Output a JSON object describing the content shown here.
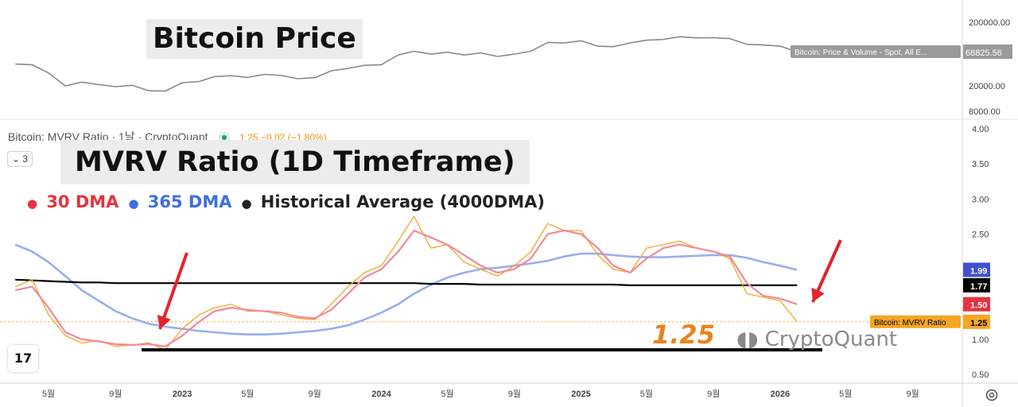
{
  "overlay": {
    "price_title": "Bitcoin Price",
    "mvrv_title": "MVRV Ratio (1D Timeframe)",
    "legend": [
      {
        "marker": "●",
        "label": "30 DMA",
        "color": "#e5333f"
      },
      {
        "marker": "●",
        "label": "365 DMA",
        "color": "#3f6fe0"
      },
      {
        "marker": "●",
        "label": "Historical Average (4000DMA)",
        "color": "#222222"
      }
    ],
    "value_label": "1.25",
    "watermark": "CryptoQuant"
  },
  "pane_header": {
    "series": "Bitcoin: MVRV Ratio · 1날 · CryptoQuant",
    "values": "1.25  −0.02 (−1.80%)",
    "collapse_label": "3"
  },
  "chart_data": [
    {
      "type": "line",
      "scale": "log",
      "y_ticks": [
        "200000.00",
        "20000.00",
        "8000.00"
      ],
      "last_value_labels": {
        "series": "Bitcoin: Price & Volume - Spot, All E...",
        "value": "68825.56"
      },
      "x": [
        "2022-03",
        "2022-04",
        "2022-05",
        "2022-06",
        "2022-07",
        "2022-08",
        "2022-09",
        "2022-10",
        "2022-11",
        "2022-12",
        "2023-01",
        "2023-02",
        "2023-03",
        "2023-04",
        "2023-05",
        "2023-06",
        "2023-07",
        "2023-08",
        "2023-09",
        "2023-10",
        "2023-11",
        "2023-12",
        "2024-01",
        "2024-02",
        "2024-03",
        "2024-04",
        "2024-05",
        "2024-06",
        "2024-07",
        "2024-08",
        "2024-09",
        "2024-10",
        "2024-11",
        "2024-12",
        "2025-01",
        "2025-02",
        "2025-03",
        "2025-04",
        "2025-05",
        "2025-06",
        "2025-07",
        "2025-08",
        "2025-09",
        "2025-10",
        "2025-11",
        "2025-12",
        "2026-01",
        "2026-02"
      ],
      "series": [
        {
          "color": "#8a8a8a",
          "values": [
            44000,
            43000,
            32000,
            20000,
            23000,
            21000,
            19500,
            20500,
            16800,
            16600,
            22500,
            23500,
            28000,
            29000,
            27200,
            30400,
            29200,
            26000,
            27000,
            34500,
            37700,
            42000,
            43000,
            61000,
            70000,
            63000,
            67500,
            61000,
            66000,
            58000,
            63000,
            70000,
            96000,
            94000,
            102000,
            84000,
            82500,
            94000,
            104000,
            107000,
            118000,
            113000,
            114000,
            110000,
            90000,
            87500,
            84000,
            68825
          ]
        }
      ]
    },
    {
      "type": "line",
      "ylim": [
        0.5,
        4.0
      ],
      "y_ticks": [
        "4.00",
        "3.50",
        "3.00",
        "2.50",
        "2.00",
        "1.50",
        "1.00",
        "0.50"
      ],
      "x_ticks": [
        "5월",
        "9월",
        "2023",
        "5월",
        "9월",
        "2024",
        "5월",
        "9월",
        "2025",
        "5월",
        "9월",
        "2026",
        "5월",
        "9월"
      ],
      "x_tick_dates": [
        "2022-05",
        "2022-09",
        "2023-01",
        "2023-05",
        "2023-09",
        "2024-01",
        "2024-05",
        "2024-09",
        "2025-01",
        "2025-05",
        "2025-09",
        "2026-01",
        "2026-05",
        "2026-09"
      ],
      "x": [
        "2022-03",
        "2022-04",
        "2022-05",
        "2022-06",
        "2022-07",
        "2022-08",
        "2022-09",
        "2022-10",
        "2022-11",
        "2022-12",
        "2023-01",
        "2023-02",
        "2023-03",
        "2023-04",
        "2023-05",
        "2023-06",
        "2023-07",
        "2023-08",
        "2023-09",
        "2023-10",
        "2023-11",
        "2023-12",
        "2024-01",
        "2024-02",
        "2024-03",
        "2024-04",
        "2024-05",
        "2024-06",
        "2024-07",
        "2024-08",
        "2024-09",
        "2024-10",
        "2024-11",
        "2024-12",
        "2025-01",
        "2025-02",
        "2025-03",
        "2025-04",
        "2025-05",
        "2025-06",
        "2025-07",
        "2025-08",
        "2025-09",
        "2025-10",
        "2025-11",
        "2025-12",
        "2026-01",
        "2026-02"
      ],
      "series": [
        {
          "color": "#f5a623",
          "values": [
            1.75,
            1.85,
            1.35,
            1.05,
            0.95,
            0.98,
            0.9,
            0.92,
            0.95,
            0.85,
            1.15,
            1.35,
            1.45,
            1.5,
            1.4,
            1.4,
            1.35,
            1.3,
            1.28,
            1.5,
            1.75,
            1.95,
            2.05,
            2.4,
            2.75,
            2.3,
            2.35,
            2.1,
            2.0,
            1.9,
            2.05,
            2.25,
            2.65,
            2.55,
            2.55,
            2.2,
            2.0,
            1.95,
            2.3,
            2.35,
            2.4,
            2.3,
            2.25,
            2.15,
            1.65,
            1.6,
            1.55,
            1.25
          ]
        },
        {
          "name": "30 DMA",
          "color": "#f08a9a",
          "values": [
            1.7,
            1.75,
            1.45,
            1.1,
            1.0,
            0.97,
            0.93,
            0.92,
            0.93,
            0.9,
            1.05,
            1.25,
            1.4,
            1.45,
            1.42,
            1.4,
            1.38,
            1.32,
            1.3,
            1.42,
            1.65,
            1.88,
            2.0,
            2.25,
            2.55,
            2.45,
            2.35,
            2.2,
            2.05,
            1.95,
            2.0,
            2.15,
            2.5,
            2.55,
            2.5,
            2.3,
            2.05,
            1.95,
            2.15,
            2.3,
            2.35,
            2.3,
            2.25,
            2.18,
            1.8,
            1.62,
            1.58,
            1.5
          ]
        },
        {
          "name": "365 DMA",
          "color": "#99aef0",
          "values": [
            2.35,
            2.25,
            2.1,
            1.9,
            1.7,
            1.55,
            1.4,
            1.3,
            1.22,
            1.18,
            1.15,
            1.12,
            1.1,
            1.08,
            1.07,
            1.07,
            1.08,
            1.1,
            1.12,
            1.15,
            1.2,
            1.28,
            1.38,
            1.5,
            1.65,
            1.78,
            1.88,
            1.95,
            2.0,
            2.02,
            2.05,
            2.08,
            2.12,
            2.18,
            2.22,
            2.22,
            2.2,
            2.18,
            2.17,
            2.17,
            2.18,
            2.19,
            2.2,
            2.2,
            2.16,
            2.1,
            2.05,
            1.99
          ]
        },
        {
          "name": "Historical Average (4000DMA)",
          "color": "#000000",
          "values": [
            1.85,
            1.84,
            1.83,
            1.82,
            1.81,
            1.81,
            1.8,
            1.8,
            1.8,
            1.8,
            1.8,
            1.8,
            1.8,
            1.8,
            1.8,
            1.8,
            1.8,
            1.8,
            1.8,
            1.8,
            1.8,
            1.8,
            1.8,
            1.8,
            1.8,
            1.79,
            1.79,
            1.79,
            1.78,
            1.78,
            1.78,
            1.78,
            1.78,
            1.78,
            1.78,
            1.78,
            1.78,
            1.77,
            1.77,
            1.77,
            1.77,
            1.77,
            1.77,
            1.77,
            1.77,
            1.77,
            1.77,
            1.77
          ]
        }
      ],
      "last_value_labels": [
        {
          "value": "1.99",
          "color": "#3f51d0",
          "text_color": "#ffffff"
        },
        {
          "value": "1.77",
          "color": "#000000",
          "text_color": "#ffffff"
        },
        {
          "value": "1.50",
          "color": "#e5333f",
          "text_color": "#ffffff"
        },
        {
          "value": "1.25",
          "label": "Bitcoin: MVRV Ratio",
          "color": "#f5a623",
          "text_color": "#000000"
        }
      ],
      "support_level": 0.85,
      "annotations": [
        "red arrow pointing to late-2022 low",
        "red arrow pointing to current value"
      ]
    }
  ]
}
